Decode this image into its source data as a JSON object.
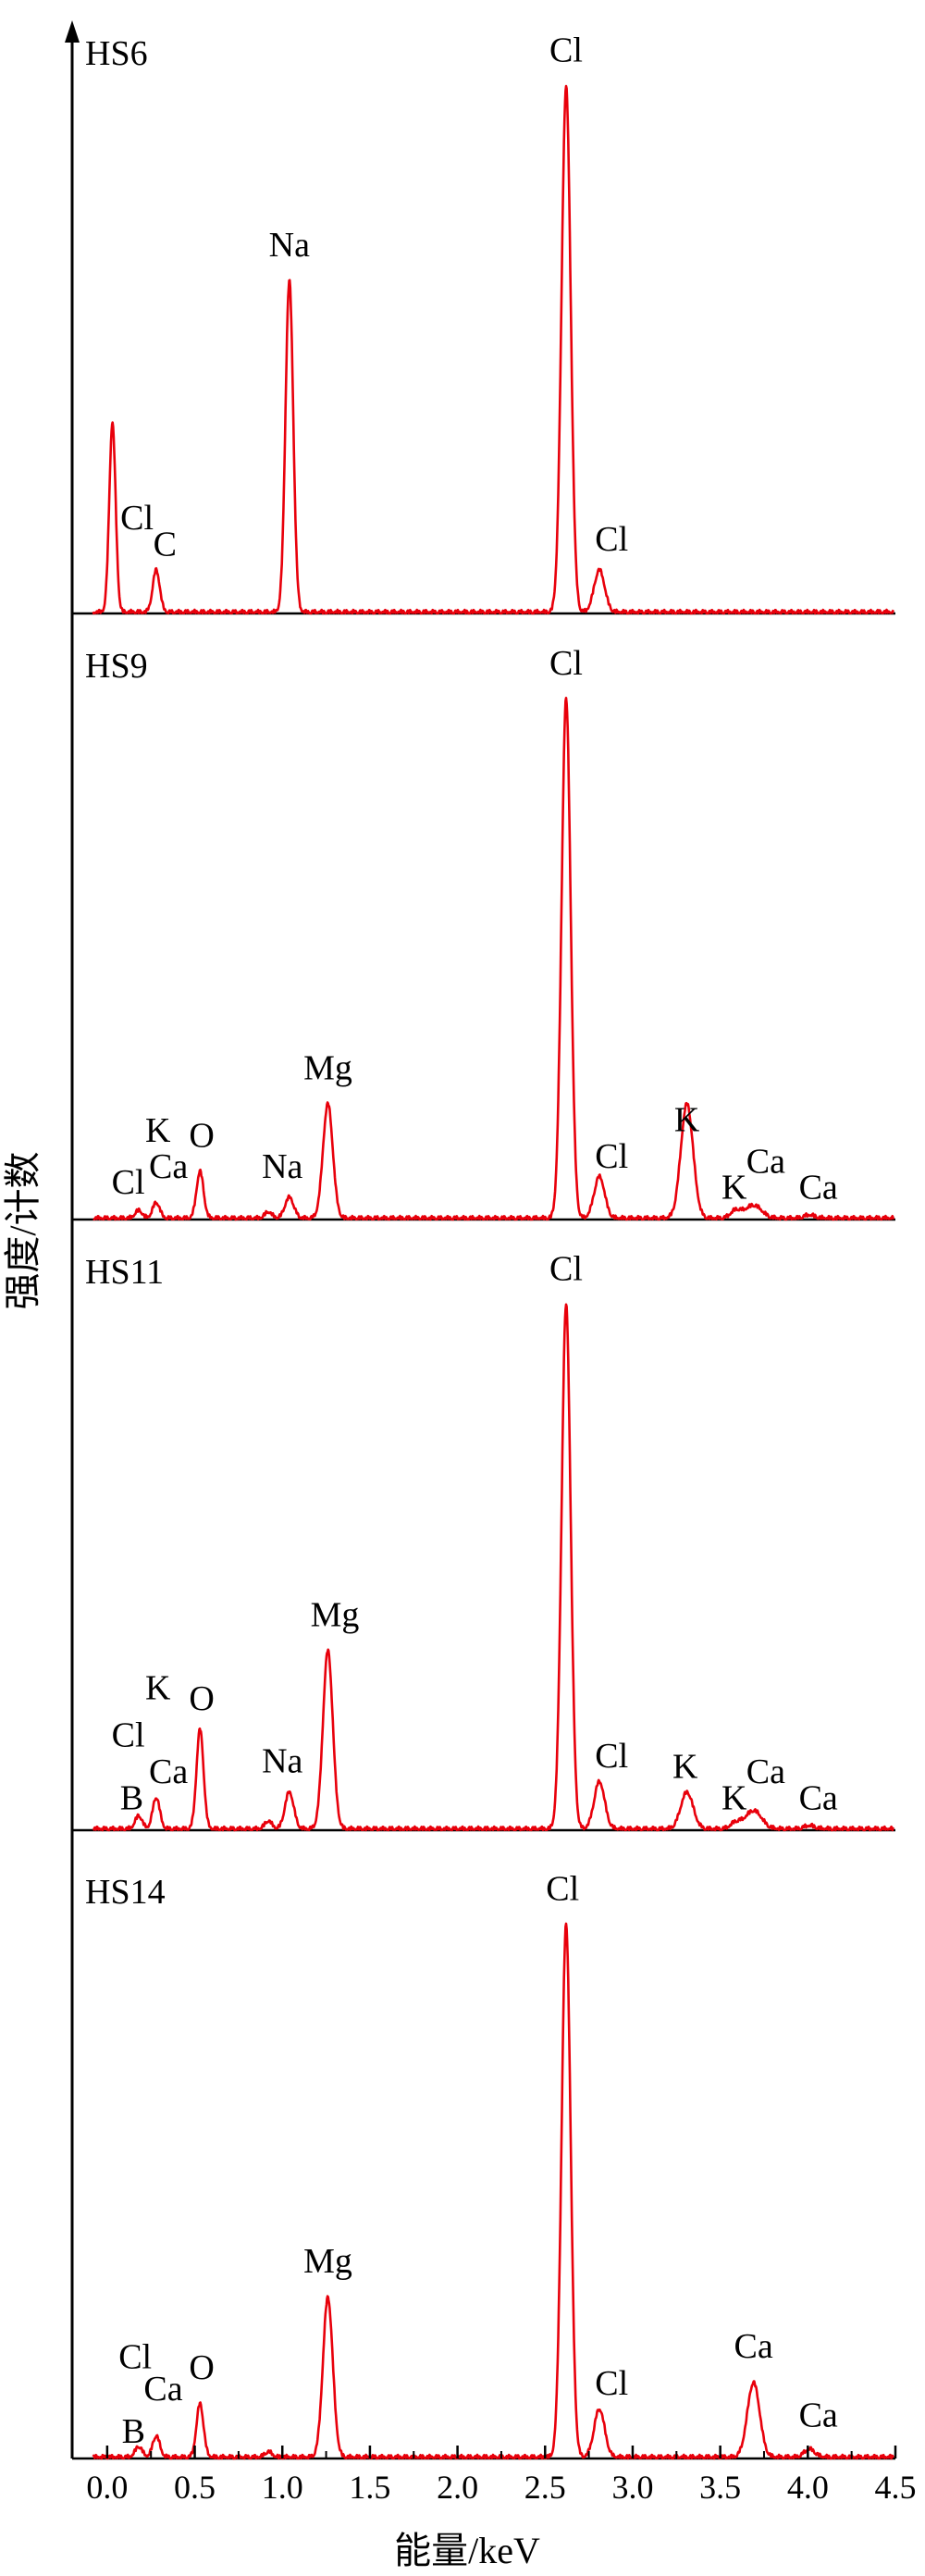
{
  "chart_data": {
    "type": "line",
    "title": "",
    "xlabel": "能量/keV",
    "ylabel": "强度/计数",
    "xlim": [
      -0.2,
      4.5
    ],
    "x_ticks": [
      "0.0",
      "0.5",
      "1.0",
      "1.5",
      "2.0",
      "2.5",
      "3.0",
      "3.5",
      "4.0",
      "4.5"
    ],
    "x_tick_values": [
      0.0,
      0.5,
      1.0,
      1.5,
      2.0,
      2.5,
      3.0,
      3.5,
      4.0,
      4.5
    ],
    "line_color": "#e8000b",
    "grid": false,
    "stacked_panels": true,
    "panels": [
      {
        "name": "HS6",
        "peaks": [
          {
            "x": 0.03,
            "y": 0.36,
            "w": 0.018
          },
          {
            "x": 0.28,
            "y": 0.08,
            "w": 0.02
          },
          {
            "x": 1.04,
            "y": 0.63,
            "w": 0.022
          },
          {
            "x": 2.62,
            "y": 1.0,
            "w": 0.026
          },
          {
            "x": 2.81,
            "y": 0.08,
            "w": 0.03
          }
        ],
        "labels": [
          {
            "text": "Na",
            "x": 1.04,
            "y": 0.68
          },
          {
            "text": "Cl",
            "x": 2.62,
            "y": 1.05
          },
          {
            "text": "Cl",
            "x": 0.17,
            "y": 0.16
          },
          {
            "text": "C",
            "x": 0.33,
            "y": 0.11
          },
          {
            "text": "Cl",
            "x": 2.88,
            "y": 0.12
          }
        ]
      },
      {
        "name": "HS9",
        "peaks": [
          {
            "x": 0.18,
            "y": 0.015,
            "w": 0.02
          },
          {
            "x": 0.28,
            "y": 0.03,
            "w": 0.02
          },
          {
            "x": 0.53,
            "y": 0.09,
            "w": 0.02
          },
          {
            "x": 0.92,
            "y": 0.012,
            "w": 0.02
          },
          {
            "x": 1.04,
            "y": 0.04,
            "w": 0.025
          },
          {
            "x": 1.26,
            "y": 0.22,
            "w": 0.028
          },
          {
            "x": 2.62,
            "y": 1.0,
            "w": 0.026
          },
          {
            "x": 2.81,
            "y": 0.08,
            "w": 0.03
          },
          {
            "x": 3.31,
            "y": 0.22,
            "w": 0.035
          },
          {
            "x": 3.59,
            "y": 0.015,
            "w": 0.03
          },
          {
            "x": 3.69,
            "y": 0.025,
            "w": 0.045
          },
          {
            "x": 4.01,
            "y": 0.006,
            "w": 0.03
          }
        ],
        "labels": [
          {
            "text": "Cl",
            "x": 2.62,
            "y": 1.05
          },
          {
            "text": "Mg",
            "x": 1.26,
            "y": 0.27
          },
          {
            "text": "K",
            "x": 3.31,
            "y": 0.17
          },
          {
            "text": "Cl",
            "x": 2.88,
            "y": 0.1
          },
          {
            "text": "Na",
            "x": 1.0,
            "y": 0.08
          },
          {
            "text": "O",
            "x": 0.54,
            "y": 0.14
          },
          {
            "text": "K",
            "x": 0.29,
            "y": 0.15
          },
          {
            "text": "Ca",
            "x": 0.35,
            "y": 0.08
          },
          {
            "text": "Cl",
            "x": 0.12,
            "y": 0.05
          },
          {
            "text": "Ca",
            "x": 3.76,
            "y": 0.09
          },
          {
            "text": "K",
            "x": 3.58,
            "y": 0.04
          },
          {
            "text": "Ca",
            "x": 4.06,
            "y": 0.04
          }
        ]
      },
      {
        "name": "HS11",
        "peaks": [
          {
            "x": 0.18,
            "y": 0.025,
            "w": 0.02
          },
          {
            "x": 0.28,
            "y": 0.06,
            "w": 0.02
          },
          {
            "x": 0.53,
            "y": 0.19,
            "w": 0.02
          },
          {
            "x": 0.92,
            "y": 0.015,
            "w": 0.02
          },
          {
            "x": 1.04,
            "y": 0.07,
            "w": 0.025
          },
          {
            "x": 1.26,
            "y": 0.34,
            "w": 0.028
          },
          {
            "x": 2.62,
            "y": 1.0,
            "w": 0.026
          },
          {
            "x": 2.81,
            "y": 0.09,
            "w": 0.03
          },
          {
            "x": 3.31,
            "y": 0.07,
            "w": 0.035
          },
          {
            "x": 3.59,
            "y": 0.012,
            "w": 0.03
          },
          {
            "x": 3.69,
            "y": 0.035,
            "w": 0.045
          },
          {
            "x": 4.01,
            "y": 0.006,
            "w": 0.03
          }
        ],
        "labels": [
          {
            "text": "Cl",
            "x": 2.62,
            "y": 1.05
          },
          {
            "text": "Mg",
            "x": 1.3,
            "y": 0.39
          },
          {
            "text": "O",
            "x": 0.54,
            "y": 0.23
          },
          {
            "text": "Na",
            "x": 1.0,
            "y": 0.11
          },
          {
            "text": "Cl",
            "x": 2.88,
            "y": 0.12
          },
          {
            "text": "K",
            "x": 3.3,
            "y": 0.1
          },
          {
            "text": "K",
            "x": 0.29,
            "y": 0.25
          },
          {
            "text": "Cl",
            "x": 0.12,
            "y": 0.16
          },
          {
            "text": "Ca",
            "x": 0.35,
            "y": 0.09
          },
          {
            "text": "B",
            "x": 0.14,
            "y": 0.04
          },
          {
            "text": "Ca",
            "x": 3.76,
            "y": 0.09
          },
          {
            "text": "K",
            "x": 3.58,
            "y": 0.04
          },
          {
            "text": "Ca",
            "x": 4.06,
            "y": 0.04
          }
        ]
      },
      {
        "name": "HS14",
        "peaks": [
          {
            "x": 0.18,
            "y": 0.02,
            "w": 0.02
          },
          {
            "x": 0.28,
            "y": 0.04,
            "w": 0.02
          },
          {
            "x": 0.53,
            "y": 0.1,
            "w": 0.02
          },
          {
            "x": 0.92,
            "y": 0.01,
            "w": 0.02
          },
          {
            "x": 1.26,
            "y": 0.3,
            "w": 0.028
          },
          {
            "x": 2.62,
            "y": 1.0,
            "w": 0.026
          },
          {
            "x": 2.81,
            "y": 0.09,
            "w": 0.03
          },
          {
            "x": 3.69,
            "y": 0.14,
            "w": 0.035
          },
          {
            "x": 4.01,
            "y": 0.015,
            "w": 0.03
          }
        ],
        "labels": [
          {
            "text": "Cl",
            "x": 2.6,
            "y": 1.05
          },
          {
            "text": "Mg",
            "x": 1.26,
            "y": 0.35
          },
          {
            "text": "Ca",
            "x": 3.69,
            "y": 0.19
          },
          {
            "text": "Cl",
            "x": 2.88,
            "y": 0.12
          },
          {
            "text": "Cl",
            "x": 0.16,
            "y": 0.17
          },
          {
            "text": "O",
            "x": 0.54,
            "y": 0.15
          },
          {
            "text": "Ca",
            "x": 0.32,
            "y": 0.11
          },
          {
            "text": "B",
            "x": 0.15,
            "y": 0.03
          },
          {
            "text": "Ca",
            "x": 4.06,
            "y": 0.06
          }
        ]
      }
    ]
  }
}
